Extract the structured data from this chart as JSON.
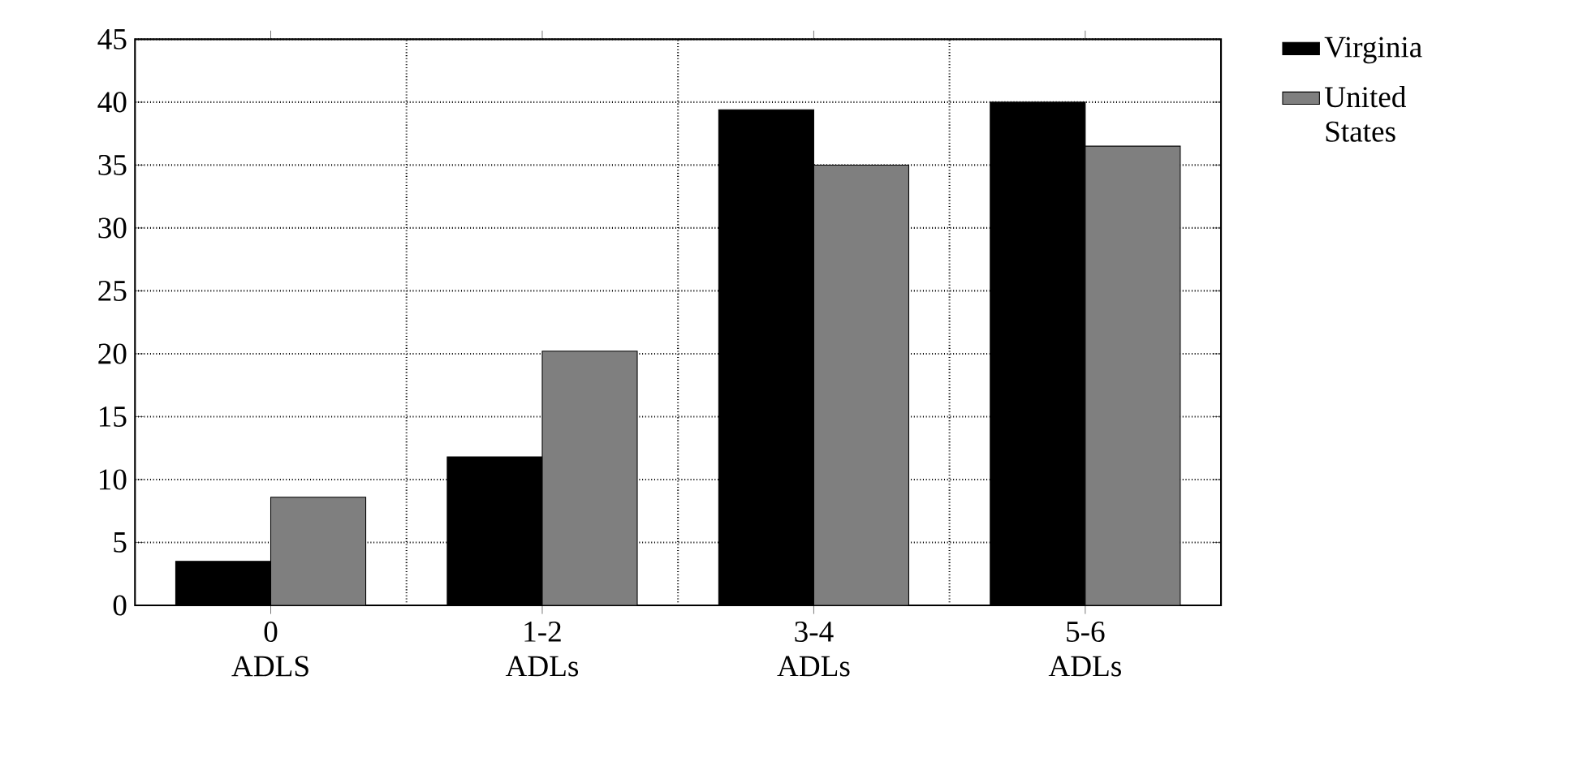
{
  "chart_data": {
    "type": "bar",
    "categories": [
      "0 ADLS",
      "1-2 ADLs",
      "3-4 ADLs",
      "5-6 ADLs"
    ],
    "series": [
      {
        "name": "Virginia",
        "color": "#000000",
        "values": [
          3.5,
          11.8,
          39.4,
          40
        ]
      },
      {
        "name": "United States",
        "color": "#7f7f7f",
        "values": [
          8.6,
          20.2,
          35,
          36.5
        ]
      }
    ],
    "ylim": [
      0,
      45
    ],
    "yticks": [
      0,
      5,
      10,
      15,
      20,
      25,
      30,
      35,
      40,
      45
    ],
    "grid": true,
    "legend": "top right"
  }
}
